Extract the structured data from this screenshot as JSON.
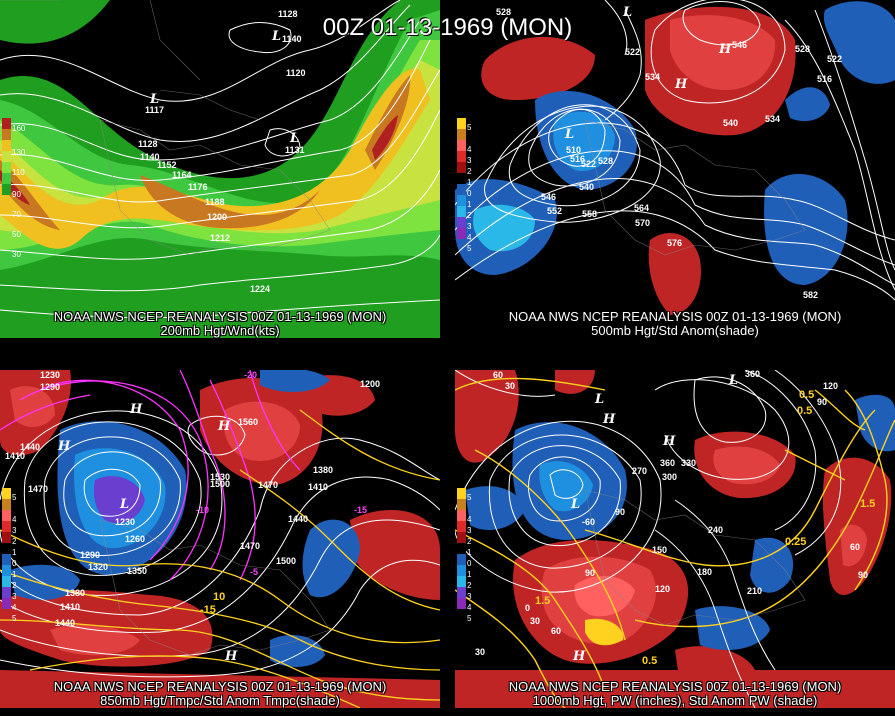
{
  "title": "00Z 01-13-1969 (MON)",
  "panels": [
    {
      "caption1": "NOAA NWS NCEP REANALYSIS 00Z 01-13-1969 (MON)",
      "caption2": "200mb Hgt/Wnd(kts)",
      "legend_labels": [
        "160",
        "130",
        "110",
        "90",
        "70",
        "50",
        "30"
      ],
      "contour_labels": [
        "1128",
        "1140",
        "1120",
        "1117",
        "1128",
        "1140",
        "1152",
        "1164",
        "1176",
        "1188",
        "1200",
        "1212",
        "1224",
        "1131"
      ]
    },
    {
      "caption1": "NOAA NWS NCEP REANALYSIS 00Z 01-13-1969 (MON)",
      "caption2": "500mb Hgt/Std Anom(shade)",
      "legend_labels": [
        "5",
        "4",
        "3",
        "2",
        "1",
        "0",
        "1",
        "2",
        "3",
        "4",
        "5"
      ],
      "contour_labels": [
        "528",
        "522",
        "534",
        "546",
        "540",
        "534",
        "528",
        "516",
        "522",
        "510",
        "516",
        "522",
        "528",
        "540",
        "546",
        "552",
        "558",
        "564",
        "570",
        "576",
        "582"
      ]
    },
    {
      "caption1": "NOAA NWS NCEP REANALYSIS 00Z 01-13-1969 (MON)",
      "caption2": "850mb Hgt/Tmpc/Std Anom Tmpc(shade)",
      "legend_labels": [
        "5",
        "4",
        "3",
        "2",
        "1",
        "0",
        "1",
        "2",
        "3",
        "4",
        "5"
      ],
      "contour_labels": [
        "1230",
        "1290",
        "1410",
        "1440",
        "1470",
        "1230",
        "1260",
        "1290",
        "1320",
        "1350",
        "1380",
        "1410",
        "1440",
        "1440",
        "1470",
        "1500",
        "1530",
        "1560",
        "1470",
        "1410",
        "1380",
        "1200",
        "1500",
        "-20",
        "-15",
        "-10",
        "-5",
        "-15",
        "10"
      ]
    },
    {
      "caption1": "NOAA NWS NCEP REANALYSIS 00Z 01-13-1969 (MON)",
      "caption2": "1000mb Hgt, PW (inches), Std Anom PW (shade)",
      "legend_labels": [
        "5",
        "4",
        "3",
        "2",
        "1",
        "0",
        "1",
        "2",
        "3",
        "4",
        "5"
      ],
      "contour_labels": [
        "360",
        "120",
        "90",
        "60",
        "30",
        "-60",
        "90",
        "270",
        "360",
        "330",
        "300",
        "240",
        "180",
        "210",
        "150",
        "120",
        "90",
        "60",
        "30",
        "0",
        "30",
        "60",
        "90",
        "1.5",
        "0.5",
        "0.25",
        "0.5",
        "1.5",
        "0.5"
      ]
    }
  ],
  "colors": {
    "wind": [
      "#1f9e1f",
      "#3fc83f",
      "#7ee23f",
      "#c8e23f",
      "#f0c020",
      "#c87820",
      "#b02020"
    ],
    "anom_pos": [
      "#ffd21f",
      "#c8801f",
      "#ff6060",
      "#e02a2a",
      "#a01010"
    ],
    "anom_neg": [
      "#1f5fb8",
      "#1f8fe0",
      "#2ab8e8",
      "#6a3fd0",
      "#8a2ab8"
    ]
  }
}
